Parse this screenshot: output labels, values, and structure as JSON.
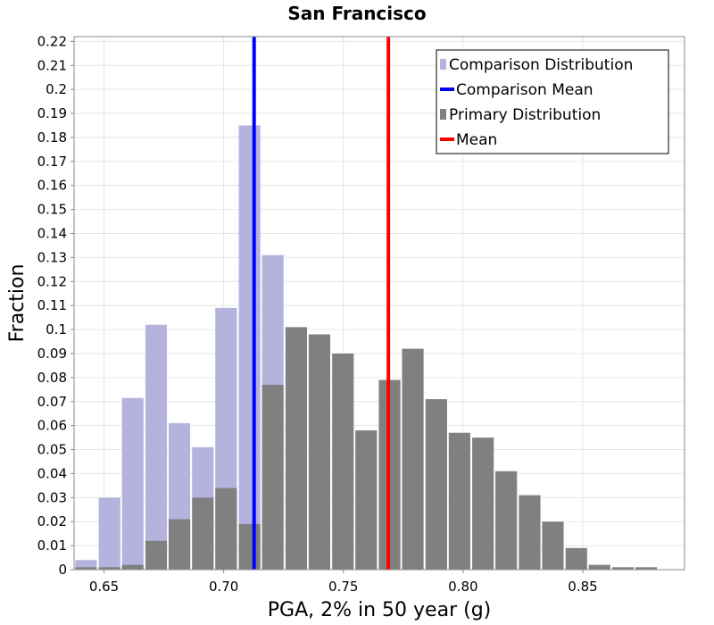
{
  "chart_data": {
    "type": "bar",
    "title": "San Francisco",
    "xlabel": "PGA, 2% in 50 year (g)",
    "ylabel": "Fraction",
    "xlim": [
      0.6375,
      0.8925
    ],
    "ylim": [
      0,
      0.222
    ],
    "bin_width": 0.00975,
    "x_ticks": [
      {
        "value": 0.65,
        "label": "0.65"
      },
      {
        "value": 0.7,
        "label": "0.70"
      },
      {
        "value": 0.75,
        "label": "0.75"
      },
      {
        "value": 0.8,
        "label": "0.80"
      },
      {
        "value": 0.85,
        "label": "0.85"
      }
    ],
    "y_ticks": [
      {
        "value": 0.0,
        "label": "0"
      },
      {
        "value": 0.01,
        "label": "0.01"
      },
      {
        "value": 0.02,
        "label": "0.02"
      },
      {
        "value": 0.03,
        "label": "0.03"
      },
      {
        "value": 0.04,
        "label": "0.04"
      },
      {
        "value": 0.05,
        "label": "0.05"
      },
      {
        "value": 0.06,
        "label": "0.06"
      },
      {
        "value": 0.07,
        "label": "0.07"
      },
      {
        "value": 0.08,
        "label": "0.08"
      },
      {
        "value": 0.09,
        "label": "0.09"
      },
      {
        "value": 0.1,
        "label": "0.1"
      },
      {
        "value": 0.11,
        "label": "0.11"
      },
      {
        "value": 0.12,
        "label": "0.12"
      },
      {
        "value": 0.13,
        "label": "0.13"
      },
      {
        "value": 0.14,
        "label": "0.14"
      },
      {
        "value": 0.15,
        "label": "0.15"
      },
      {
        "value": 0.16,
        "label": "0.16"
      },
      {
        "value": 0.17,
        "label": "0.17"
      },
      {
        "value": 0.18,
        "label": "0.18"
      },
      {
        "value": 0.19,
        "label": "0.19"
      },
      {
        "value": 0.2,
        "label": "0.2"
      },
      {
        "value": 0.21,
        "label": "0.21"
      },
      {
        "value": 0.22,
        "label": "0.22"
      }
    ],
    "series": [
      {
        "name": "Comparison Distribution",
        "kind": "bars",
        "color": "#b3b3de",
        "bins": [
          {
            "x": 0.6425,
            "value": 0.004
          },
          {
            "x": 0.6523,
            "value": 0.03
          },
          {
            "x": 0.662,
            "value": 0.0715
          },
          {
            "x": 0.6718,
            "value": 0.102
          },
          {
            "x": 0.6815,
            "value": 0.061
          },
          {
            "x": 0.6913,
            "value": 0.051
          },
          {
            "x": 0.701,
            "value": 0.109
          },
          {
            "x": 0.7108,
            "value": 0.185
          },
          {
            "x": 0.7205,
            "value": 0.131
          }
        ]
      },
      {
        "name": "Primary Distribution",
        "kind": "bars",
        "color": "#808080",
        "bins": [
          {
            "x": 0.6425,
            "value": 0.001
          },
          {
            "x": 0.6523,
            "value": 0.001
          },
          {
            "x": 0.662,
            "value": 0.002
          },
          {
            "x": 0.6718,
            "value": 0.012
          },
          {
            "x": 0.6815,
            "value": 0.021
          },
          {
            "x": 0.6913,
            "value": 0.03
          },
          {
            "x": 0.701,
            "value": 0.034
          },
          {
            "x": 0.7108,
            "value": 0.019
          },
          {
            "x": 0.7205,
            "value": 0.077
          },
          {
            "x": 0.7303,
            "value": 0.101
          },
          {
            "x": 0.74,
            "value": 0.098
          },
          {
            "x": 0.7498,
            "value": 0.09
          },
          {
            "x": 0.7595,
            "value": 0.058
          },
          {
            "x": 0.7693,
            "value": 0.079
          },
          {
            "x": 0.779,
            "value": 0.092
          },
          {
            "x": 0.7888,
            "value": 0.071
          },
          {
            "x": 0.7985,
            "value": 0.057
          },
          {
            "x": 0.8083,
            "value": 0.055
          },
          {
            "x": 0.818,
            "value": 0.041
          },
          {
            "x": 0.8278,
            "value": 0.031
          },
          {
            "x": 0.8375,
            "value": 0.02
          },
          {
            "x": 0.8473,
            "value": 0.009
          },
          {
            "x": 0.857,
            "value": 0.002
          },
          {
            "x": 0.8668,
            "value": 0.001
          },
          {
            "x": 0.8765,
            "value": 0.001
          }
        ]
      },
      {
        "name": "Comparison Mean",
        "kind": "vline",
        "color": "#0000ff",
        "x": 0.7127
      },
      {
        "name": "Mean",
        "kind": "vline",
        "color": "#ff0000",
        "x": 0.7688
      }
    ],
    "legend": {
      "placement": "top-right",
      "entries": [
        {
          "label": "Comparison Distribution",
          "color": "#b3b3de",
          "symbol": "square"
        },
        {
          "label": "Comparison Mean",
          "color": "#0000ff",
          "symbol": "line"
        },
        {
          "label": "Primary Distribution",
          "color": "#808080",
          "symbol": "square"
        },
        {
          "label": "Mean",
          "color": "#ff0000",
          "symbol": "line"
        }
      ]
    },
    "grid": true
  }
}
